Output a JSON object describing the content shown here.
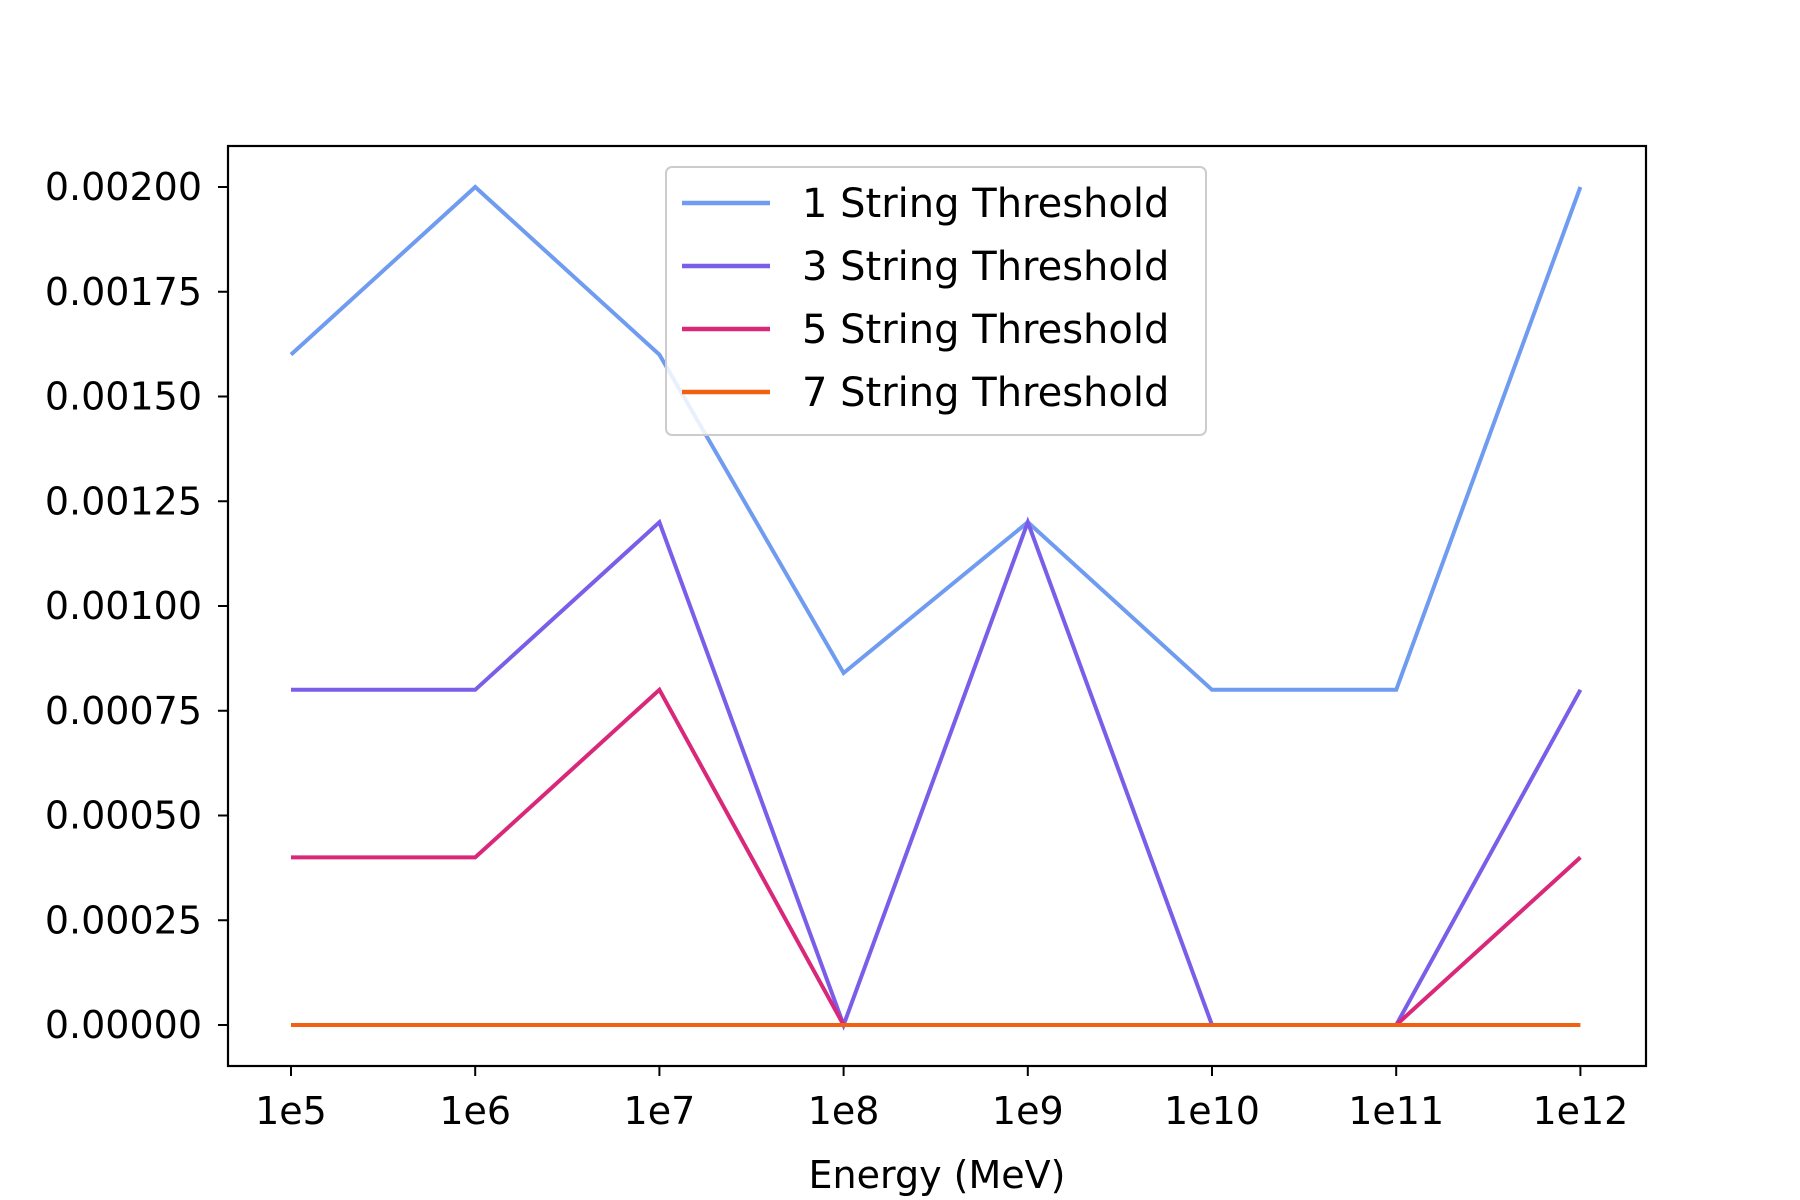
{
  "chart_data": {
    "type": "line",
    "title": "",
    "xlabel": "Energy (MeV)",
    "ylabel": "",
    "categories": [
      "1e5",
      "1e6",
      "1e7",
      "1e8",
      "1e9",
      "1e10",
      "1e11",
      "1e12"
    ],
    "yticks": [
      "0.00000",
      "0.00025",
      "0.00050",
      "0.00075",
      "0.00100",
      "0.00125",
      "0.00150",
      "0.00175",
      "0.00200"
    ],
    "ylim": [
      -0.0001,
      0.0021
    ],
    "grid": false,
    "legend_position": "upper-center",
    "series": [
      {
        "name": "1 String Threshold",
        "color": "#6f9cf0",
        "values": [
          0.0016,
          0.002,
          0.0016,
          0.00084,
          0.0012,
          0.0008,
          0.0008,
          0.002
        ]
      },
      {
        "name": "3 String Threshold",
        "color": "#7a5de8",
        "values": [
          0.0008,
          0.0008,
          0.0012,
          0.0,
          0.0012,
          0.0,
          0.0,
          0.0008
        ]
      },
      {
        "name": "5 String Threshold",
        "color": "#d9287a",
        "values": [
          0.0004,
          0.0004,
          0.0008,
          0.0,
          0.0,
          0.0,
          0.0,
          0.0004
        ]
      },
      {
        "name": "7 String Threshold",
        "color": "#f26111",
        "values": [
          0.0,
          0.0,
          0.0,
          0.0,
          0.0,
          0.0,
          0.0,
          0.0
        ]
      }
    ]
  }
}
